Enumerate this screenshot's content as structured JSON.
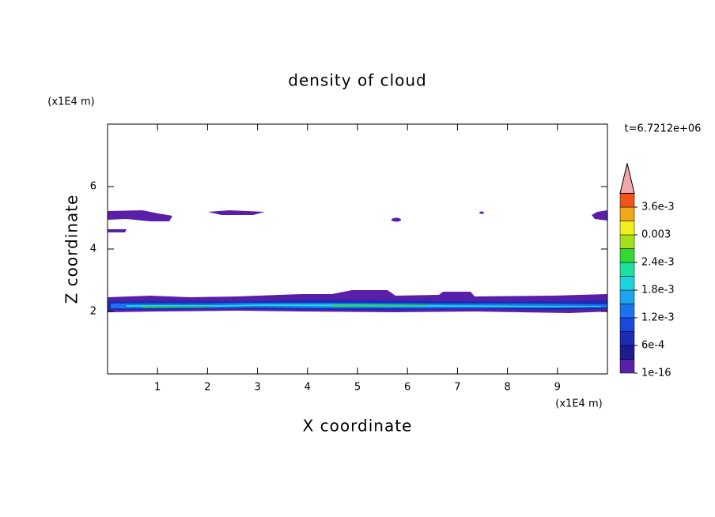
{
  "chart_data": {
    "type": "contour",
    "title": "density of cloud",
    "xlabel": "X coordinate",
    "ylabel": "Z coordinate",
    "x_unit": "(x1E4 m)",
    "y_unit": "(x1E4 m)",
    "time_label": "t=6.7212e+06",
    "xlim": [
      0,
      10
    ],
    "ylim": [
      0,
      8
    ],
    "xticks": [
      1,
      2,
      3,
      4,
      5,
      6,
      7,
      8,
      9
    ],
    "yticks": [
      2,
      4,
      6
    ],
    "levels": [
      1e-16,
      0.0003,
      0.0006,
      0.0009,
      0.0012,
      0.0015,
      0.0018,
      0.0021,
      0.0024,
      0.0027,
      0.003,
      0.0033,
      0.0036
    ],
    "colors": [
      "#5a1fa8",
      "#1c1c8c",
      "#1c2cb4",
      "#1c48dc",
      "#1c74ec",
      "#1ca4ec",
      "#1cd4dc",
      "#1ce0a0",
      "#34d834",
      "#a4e01c",
      "#f0f01c",
      "#f0a81c",
      "#f0541c"
    ],
    "over_color": "#f0a8a8",
    "colorbar_ticks": [
      1e-16,
      {
        "value": 0.0006,
        "label": "6e-4"
      },
      {
        "value": 0.0012,
        "label": "1.2e-3"
      },
      {
        "value": 0.0018,
        "label": "1.8e-3"
      },
      {
        "value": 0.0024,
        "label": "2.4e-3"
      },
      0.003,
      {
        "value": 0.0036,
        "label": "3.6e-3"
      }
    ]
  }
}
